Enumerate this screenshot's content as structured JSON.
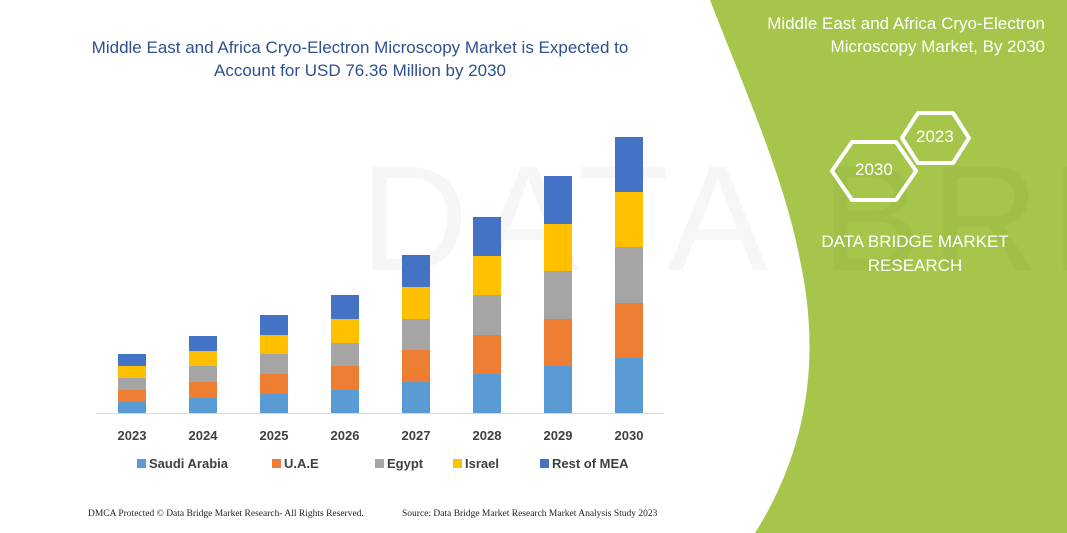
{
  "title": "Middle East and Africa Cryo-Electron Microscopy Market is Expected to Account for USD 76.36 Million by 2030",
  "side_panel": {
    "title": "Middle East and Africa Cryo-Electron Microscopy Market, By 2030",
    "hex_years": [
      "2023",
      "2030"
    ],
    "brand": "DATA BRIDGE MARKET RESEARCH",
    "color": "#a5c64a"
  },
  "footer": {
    "left": "DMCA Protected © Data Bridge Market Research-  All Rights Reserved.",
    "right": "Source:  Data Bridge Market Research  Market Analysis Study 2023"
  },
  "chart_data": {
    "type": "bar",
    "stacked": true,
    "title": "Middle East and Africa Cryo-Electron Microscopy Market is Expected to Account for USD 76.36 Million by 2030",
    "xlabel": "",
    "ylabel": "",
    "ylim": [
      0,
      280
    ],
    "grid": false,
    "legend_position": "bottom",
    "categories": [
      "2023",
      "2024",
      "2025",
      "2026",
      "2027",
      "2028",
      "2029",
      "2030"
    ],
    "series": [
      {
        "name": "Saudi Arabia",
        "color": "#5b9bd5",
        "values": [
          11,
          15,
          19,
          23,
          31,
          39,
          47,
          55
        ]
      },
      {
        "name": "U.A.E",
        "color": "#ed7d31",
        "values": [
          12,
          16,
          20,
          24,
          32,
          39,
          47,
          55
        ]
      },
      {
        "name": "Egypt",
        "color": "#a5a5a5",
        "values": [
          12,
          16,
          20,
          23,
          31,
          40,
          48,
          56
        ]
      },
      {
        "name": "Israel",
        "color": "#ffc000",
        "values": [
          12,
          15,
          19,
          24,
          32,
          39,
          47,
          55
        ]
      },
      {
        "name": "Rest of MEA",
        "color": "#4472c4",
        "values": [
          12,
          15,
          20,
          24,
          32,
          39,
          48,
          55
        ]
      }
    ]
  }
}
